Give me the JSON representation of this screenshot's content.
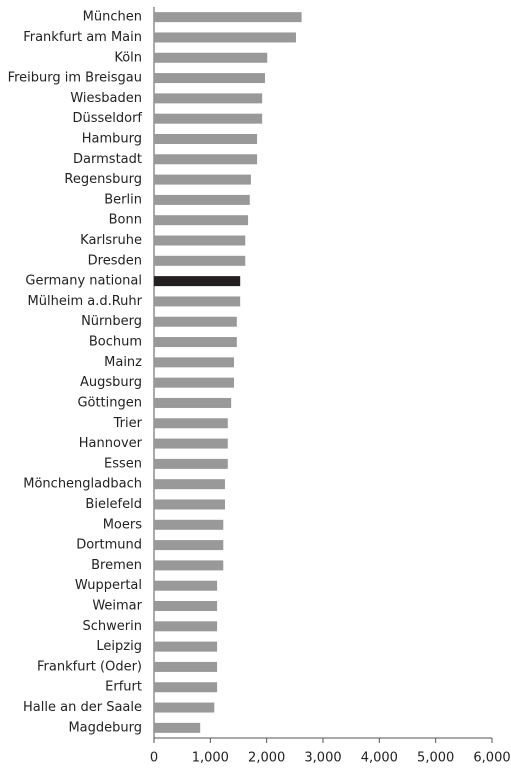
{
  "chart_data": {
    "type": "barh",
    "categories": [
      "München",
      "Frankfurt am Main",
      "Köln",
      "Freiburg im Breisgau",
      "Wiesbaden",
      "Düsseldorf",
      "Hamburg",
      "Darmstadt",
      "Regensburg",
      "Berlin",
      "Bonn",
      "Karlsruhe",
      "Dresden",
      "Germany national",
      "Mülheim a.d.Ruhr",
      "Nürnberg",
      "Bochum",
      "Mainz",
      "Augsburg",
      "Göttingen",
      "Trier",
      "Hannover",
      "Essen",
      "Mönchengladbach",
      "Bielefeld",
      "Moers",
      "Dortmund",
      "Bremen",
      "Wuppertal",
      "Weimar",
      "Schwerin",
      "Leipzig",
      "Frankfurt (Oder)",
      "Erfurt",
      "Halle an der Saale",
      "Magdeburg"
    ],
    "values": [
      2620,
      2520,
      2010,
      1970,
      1920,
      1920,
      1830,
      1830,
      1720,
      1700,
      1670,
      1620,
      1620,
      1530,
      1530,
      1470,
      1470,
      1420,
      1420,
      1370,
      1310,
      1310,
      1310,
      1260,
      1260,
      1230,
      1230,
      1230,
      1120,
      1120,
      1120,
      1120,
      1120,
      1120,
      1070,
      820
    ],
    "colors": [
      "#999999",
      "#999999",
      "#999999",
      "#999999",
      "#999999",
      "#999999",
      "#999999",
      "#999999",
      "#999999",
      "#999999",
      "#999999",
      "#999999",
      "#999999",
      "#231f20",
      "#999999",
      "#999999",
      "#999999",
      "#999999",
      "#999999",
      "#999999",
      "#999999",
      "#999999",
      "#999999",
      "#999999",
      "#999999",
      "#999999",
      "#999999",
      "#999999",
      "#999999",
      "#999999",
      "#999999",
      "#999999",
      "#999999",
      "#999999",
      "#999999",
      "#999999"
    ],
    "xlim": [
      0,
      6000
    ],
    "xticks": [
      0,
      {
        "value": 1000,
        "label": "1,000"
      },
      {
        "value": 2000,
        "label": "2,000"
      },
      {
        "value": 3000,
        "label": "3,000"
      },
      {
        "value": 4000,
        "label": "4,000"
      },
      {
        "value": 5000,
        "label": "5,000"
      },
      {
        "value": 6000,
        "label": "6,000"
      }
    ]
  }
}
